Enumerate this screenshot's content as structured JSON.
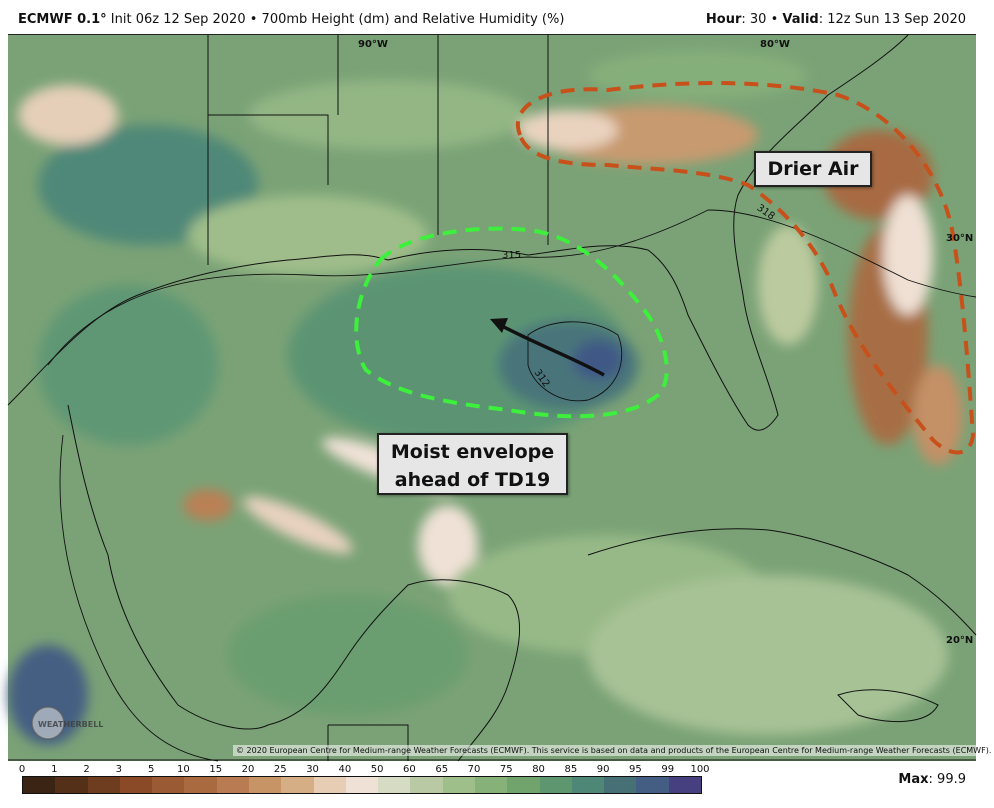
{
  "header": {
    "model": "ECMWF 0.1",
    "degree": "°",
    "init": "Init 06z 12 Sep 2020",
    "sep": "•",
    "product": "700mb Height (dm) and Relative Humidity (%)",
    "hour_label": "Hour",
    "hour_value": ": 30",
    "valid_label": "Valid",
    "valid_value": ": 12z Sun 13 Sep 2020"
  },
  "annotations": {
    "drier_air": "Drier Air",
    "moist_line1": "Moist envelope",
    "moist_line2": "ahead of TD19"
  },
  "contours": {
    "c315": "315",
    "c318": "318",
    "c312": "312"
  },
  "coordinates": {
    "lon90": "90°W",
    "lon80": "80°W",
    "lat30": "30°N",
    "lat20": "20°N"
  },
  "credit": "© 2020 European Centre for Medium-range Weather Forecasts (ECMWF). This service is based on data and products of the European Centre for Medium-range Weather Forecasts (ECMWF).",
  "logo_text": "WEATHERBELL",
  "colorbar": {
    "ticks": [
      "0",
      "1",
      "2",
      "3",
      "5",
      "10",
      "15",
      "20",
      "25",
      "30",
      "40",
      "50",
      "60",
      "65",
      "70",
      "75",
      "80",
      "85",
      "90",
      "95",
      "99",
      "100"
    ],
    "colors": [
      "#3b2414",
      "#553019",
      "#6e3c1f",
      "#8a4a28",
      "#9a5a34",
      "#aa6a40",
      "#b97c52",
      "#c79466",
      "#d6ae86",
      "#e6cdb4",
      "#efe1d6",
      "#d6dcc4",
      "#b8c9a4",
      "#9ebe8a",
      "#86b27a",
      "#70a46c",
      "#5e9670",
      "#4e8776",
      "#467076",
      "#435e82",
      "#463f80",
      "#4e2f78"
    ]
  },
  "max": {
    "label": "Max",
    "value": ": 99.9"
  }
}
